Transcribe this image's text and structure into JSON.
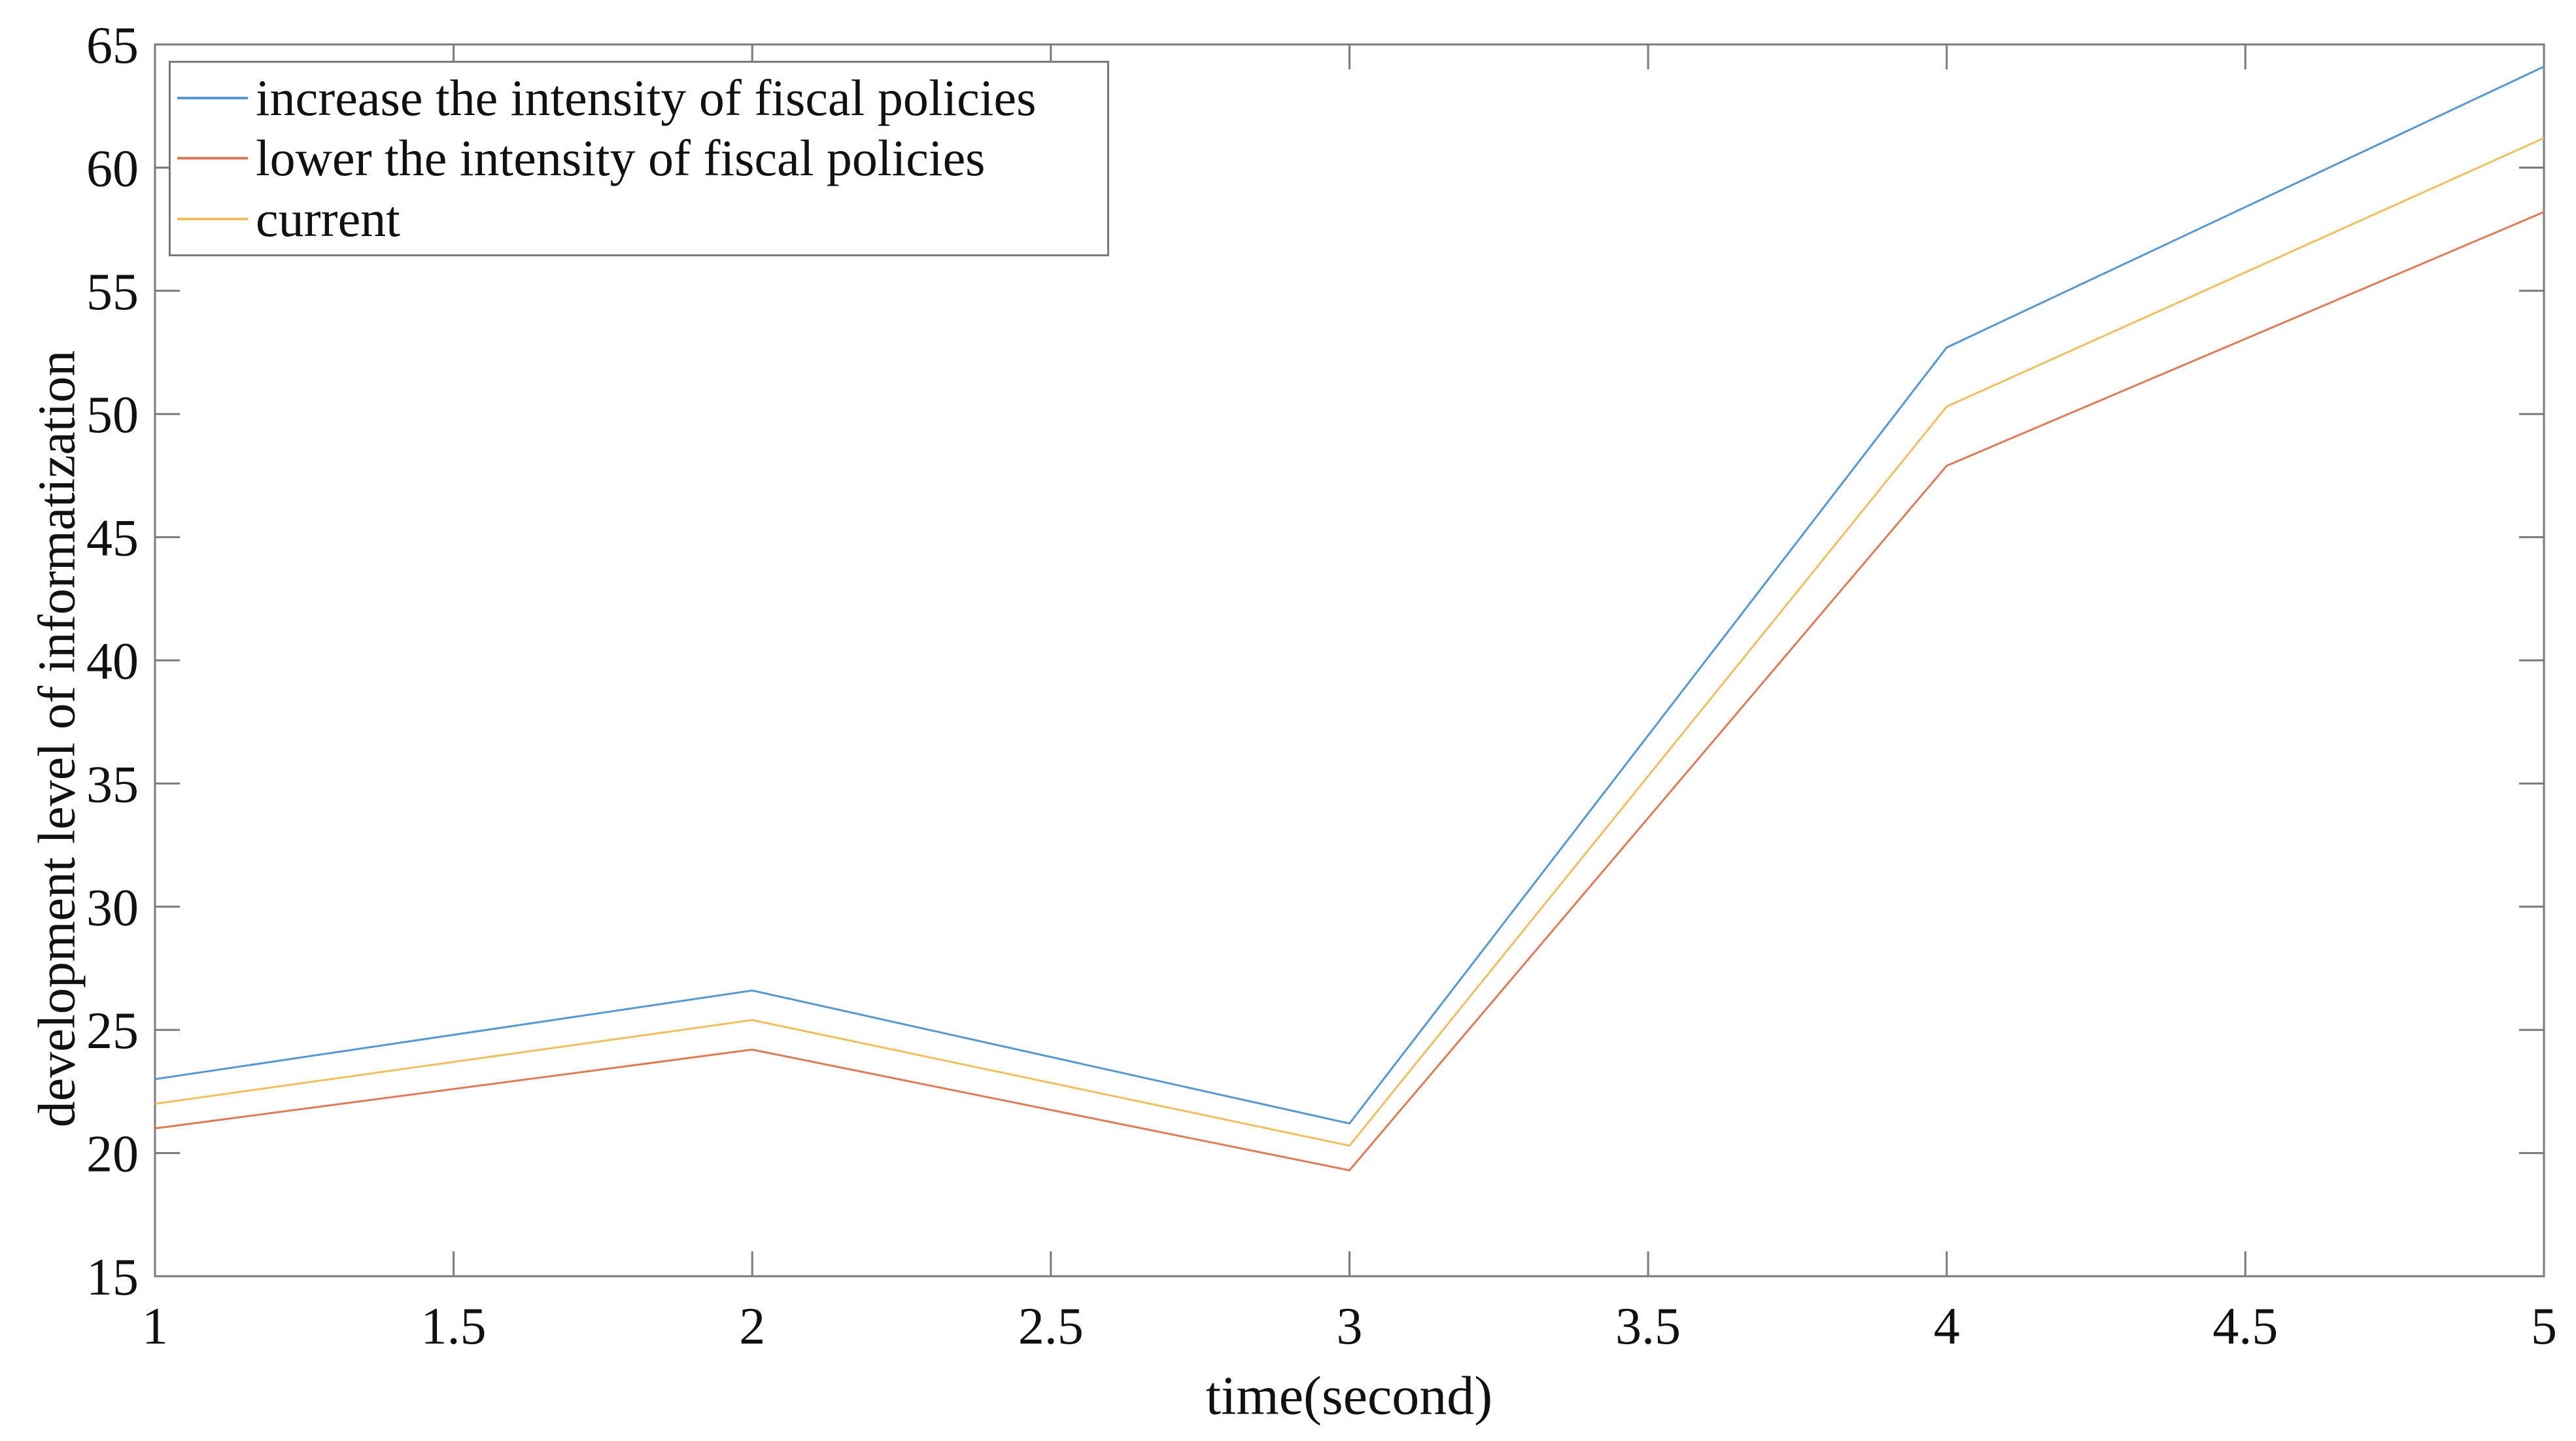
{
  "chart_data": {
    "type": "line",
    "x": [
      1,
      2,
      3,
      4,
      5
    ],
    "series": [
      {
        "name": "increase the intensity of fiscal policies",
        "color": "#5699D2",
        "values": [
          23.0,
          26.6,
          21.2,
          52.7,
          64.1
        ]
      },
      {
        "name": "lower the intensity of fiscal policies",
        "color": "#E07B58",
        "values": [
          21.0,
          24.2,
          19.3,
          47.9,
          58.2
        ]
      },
      {
        "name": "current",
        "color": "#F1C05E",
        "values": [
          22.0,
          25.4,
          20.3,
          50.3,
          61.2
        ]
      }
    ],
    "title": "",
    "xlabel": "time(second)",
    "ylabel": "development level of informatization",
    "xlim": [
      1,
      5
    ],
    "ylim": [
      15,
      65
    ],
    "xticks": [
      "1",
      "1.5",
      "2",
      "2.5",
      "3",
      "3.5",
      "4",
      "4.5",
      "5"
    ],
    "yticks": [
      "15",
      "20",
      "25",
      "30",
      "35",
      "40",
      "45",
      "50",
      "55",
      "60",
      "65"
    ],
    "grid": false,
    "legend_position": "top-left",
    "axis_color": "#7a7a7a",
    "text_color": "#111111",
    "background_color": "#ffffff"
  }
}
